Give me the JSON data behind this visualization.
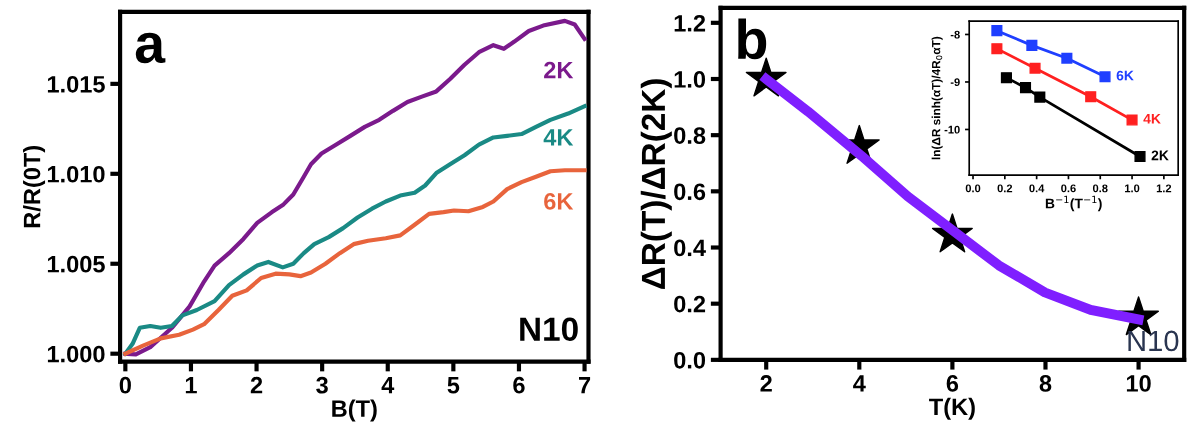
{
  "chart_data": [
    {
      "type": "line",
      "xlabel": "B(T)",
      "ylabel": "R/R(0T)",
      "xlim": [
        -0.08,
        7.06
      ],
      "ylim": [
        0.99956,
        1.019
      ],
      "xticks": [
        0,
        1,
        2,
        3,
        4,
        5,
        6,
        7
      ],
      "yticks": [
        {
          "value": 1.0,
          "label": "1.000"
        },
        {
          "value": 1.005,
          "label": "1.005"
        },
        {
          "value": 1.01,
          "label": "1.010"
        },
        {
          "value": 1.015,
          "label": "1.015"
        }
      ],
      "grid": false,
      "legend": false,
      "marker": "none",
      "annotations": [
        "a",
        "N10"
      ],
      "series": [
        {
          "name": "2K",
          "color": "#7b1a8c",
          "x": [
            0,
            0.16,
            0.38,
            0.71,
            0.98,
            1.2,
            1.36,
            1.58,
            1.8,
            2.01,
            2.23,
            2.4,
            2.56,
            2.72,
            2.83,
            2.99,
            3.21,
            3.43,
            3.65,
            3.87,
            4.08,
            4.3,
            4.52,
            4.74,
            4.95,
            5.17,
            5.39,
            5.61,
            5.77,
            5.93,
            6.15,
            6.37,
            6.7,
            6.85,
            7.0
          ],
          "values": [
            1.0,
            0.99996,
            1.00036,
            1.00144,
            1.00263,
            1.00401,
            1.0049,
            1.00559,
            1.00638,
            1.00727,
            1.00786,
            1.00826,
            1.00885,
            1.00984,
            1.01053,
            1.01113,
            1.01162,
            1.01211,
            1.01261,
            1.013,
            1.0135,
            1.01399,
            1.01429,
            1.01458,
            1.01527,
            1.01606,
            1.01676,
            1.01715,
            1.01695,
            1.01735,
            1.01794,
            1.01824,
            1.0185,
            1.0183,
            1.0175
          ]
        },
        {
          "name": "4K",
          "color": "#1a8a85",
          "x": [
            0,
            0.11,
            0.22,
            0.38,
            0.54,
            0.71,
            0.87,
            1.09,
            1.36,
            1.58,
            1.8,
            2.01,
            2.18,
            2.4,
            2.56,
            2.72,
            2.88,
            3.1,
            3.32,
            3.54,
            3.76,
            3.97,
            4.19,
            4.41,
            4.57,
            4.74,
            4.95,
            5.17,
            5.39,
            5.61,
            5.82,
            6.04,
            6.26,
            6.48,
            6.75,
            7.0
          ],
          "values": [
            1.0,
            1.00055,
            1.00144,
            1.00154,
            1.00144,
            1.00154,
            1.00213,
            1.00243,
            1.00292,
            1.00381,
            1.00441,
            1.0049,
            1.0051,
            1.0048,
            1.005,
            1.00559,
            1.00609,
            1.00648,
            1.00698,
            1.00757,
            1.00806,
            1.00846,
            1.00879,
            1.00895,
            1.00935,
            1.01004,
            1.01053,
            1.01103,
            1.01162,
            1.01202,
            1.01211,
            1.01221,
            1.01261,
            1.013,
            1.01335,
            1.01376
          ]
        },
        {
          "name": "6K",
          "color": "#e8643c",
          "x": [
            0,
            0.27,
            0.54,
            0.82,
            1.03,
            1.2,
            1.42,
            1.63,
            1.85,
            2.07,
            2.29,
            2.5,
            2.67,
            2.83,
            3.05,
            3.27,
            3.48,
            3.7,
            3.97,
            4.19,
            4.41,
            4.63,
            4.85,
            5.01,
            5.23,
            5.45,
            5.61,
            5.82,
            6.04,
            6.26,
            6.48,
            6.7,
            7.0
          ],
          "values": [
            1.0,
            1.00045,
            1.00085,
            1.00105,
            1.00134,
            1.00164,
            1.00243,
            1.00322,
            1.00352,
            1.00421,
            1.00445,
            1.00441,
            1.00431,
            1.00451,
            1.005,
            1.00559,
            1.00609,
            1.00628,
            1.00642,
            1.00658,
            1.00717,
            1.00777,
            1.00787,
            1.00796,
            1.00792,
            1.00816,
            1.00846,
            1.00915,
            1.00954,
            1.00984,
            1.01014,
            1.0102,
            1.0102
          ]
        }
      ]
    },
    {
      "type": "line",
      "xlabel": "T(K)",
      "ylabel": "ΔR(T)/ΔR(2K)",
      "xlim": [
        1.02,
        10.98
      ],
      "ylim": [
        0,
        1.253
      ],
      "xticks": [
        2,
        4,
        6,
        8,
        10
      ],
      "yticks": [
        {
          "value": 0,
          "label": "0.0"
        },
        {
          "value": 0.2,
          "label": "0.2"
        },
        {
          "value": 0.4,
          "label": "0.4"
        },
        {
          "value": 0.6,
          "label": "0.6"
        },
        {
          "value": 0.8,
          "label": "0.8"
        },
        {
          "value": 1.0,
          "label": "1.0"
        },
        {
          "value": 1.2,
          "label": "1.2"
        }
      ],
      "grid": false,
      "legend": false,
      "annotations": [
        "b",
        "N10"
      ],
      "series": [
        {
          "type": "line",
          "color": "#7f1fff",
          "marker": "none",
          "x": [
            2,
            2.9,
            4.05,
            5.04,
            6.02,
            7.0,
            7.99,
            8.97,
            10
          ],
          "values": [
            1.0,
            0.884,
            0.726,
            0.582,
            0.459,
            0.336,
            0.24,
            0.178,
            0.144
          ]
        },
        {
          "type": "scatter",
          "color": "#000000",
          "marker": "star",
          "x": [
            2,
            4,
            6,
            10
          ],
          "values": [
            1.0,
            0.76,
            0.445,
            0.15
          ]
        }
      ]
    },
    {
      "type": "line",
      "xlabel": "B$^{−1}$(T$^{−1}$)",
      "ylabel": "ln(ΔR sinh(αT)/4R$_{0}$αT)",
      "xlim": [
        -0.024,
        1.29
      ],
      "ylim": [
        -10.96,
        -7.72
      ],
      "xticks": [
        {
          "value": 0,
          "label": "0.0"
        },
        0.2,
        0.4,
        0.6,
        0.8,
        {
          "value": 1.0,
          "label": "1.0"
        },
        1.2
      ],
      "yticks": [
        -8,
        -9,
        -10
      ],
      "grid": false,
      "legend": false,
      "marker": "square",
      "series": [
        {
          "name": "6K",
          "color": "#1f3fff",
          "x": [
            0.15,
            0.37,
            0.59,
            0.83
          ],
          "values": [
            -7.92,
            -8.23,
            -8.5,
            -8.89
          ]
        },
        {
          "name": "4K",
          "color": "#ff2020",
          "x": [
            0.15,
            0.39,
            0.74,
            1.0
          ],
          "values": [
            -8.3,
            -8.71,
            -9.31,
            -9.8
          ]
        },
        {
          "name": "2K",
          "color": "#000000",
          "x": [
            0.21,
            0.33,
            0.42,
            1.05
          ],
          "values": [
            -8.91,
            -9.12,
            -9.32,
            -10.57
          ]
        }
      ]
    }
  ]
}
